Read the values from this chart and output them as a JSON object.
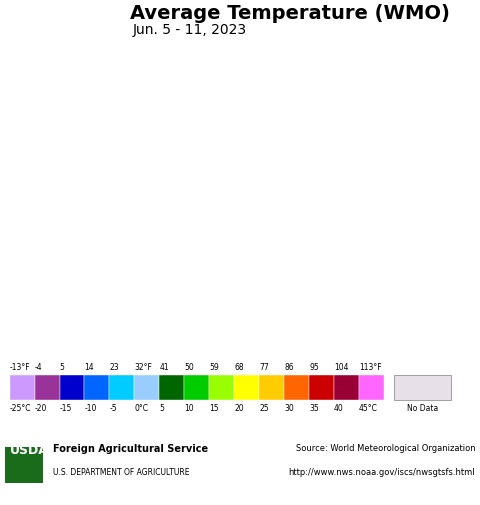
{
  "title": "Average Temperature (WMO)",
  "subtitle": "Jun. 5 - 11, 2023",
  "background_color": "#c8f0f0",
  "colorbar_fahrenheit_labels": [
    "-13°F",
    "-4",
    "5",
    "14",
    "23",
    "32°F",
    "41",
    "50",
    "59",
    "68",
    "77",
    "86",
    "95",
    "104",
    "113°F"
  ],
  "colorbar_celsius_labels": [
    "-25°C",
    "-20",
    "-15",
    "-10",
    "-5",
    "0°C",
    "5",
    "10",
    "15",
    "20",
    "25",
    "30",
    "35",
    "40",
    "45°C"
  ],
  "colorbar_colors": [
    "#cc99ff",
    "#993399",
    "#0000cc",
    "#0066ff",
    "#00ccff",
    "#99ccff",
    "#006600",
    "#00cc00",
    "#99ff00",
    "#ffff00",
    "#ffcc00",
    "#ff6600",
    "#cc0000",
    "#990033",
    "#ff66ff"
  ],
  "no_data_color": "#e8e0e8",
  "no_data_label": "No Data",
  "footer_left": "USDA Foreign Agricultural Service\nU.S. DEPARTMENT OF AGRICULTURE",
  "footer_right": "Source: World Meteorological Organization\nhttp://www.nws.noaa.gov/iscs/nwsgtsfs.html",
  "map_extent": [
    79.5,
    82.0,
    5.9,
    9.9
  ],
  "ocean_color": "#c8f0f0",
  "title_fontsize": 14,
  "subtitle_fontsize": 10
}
